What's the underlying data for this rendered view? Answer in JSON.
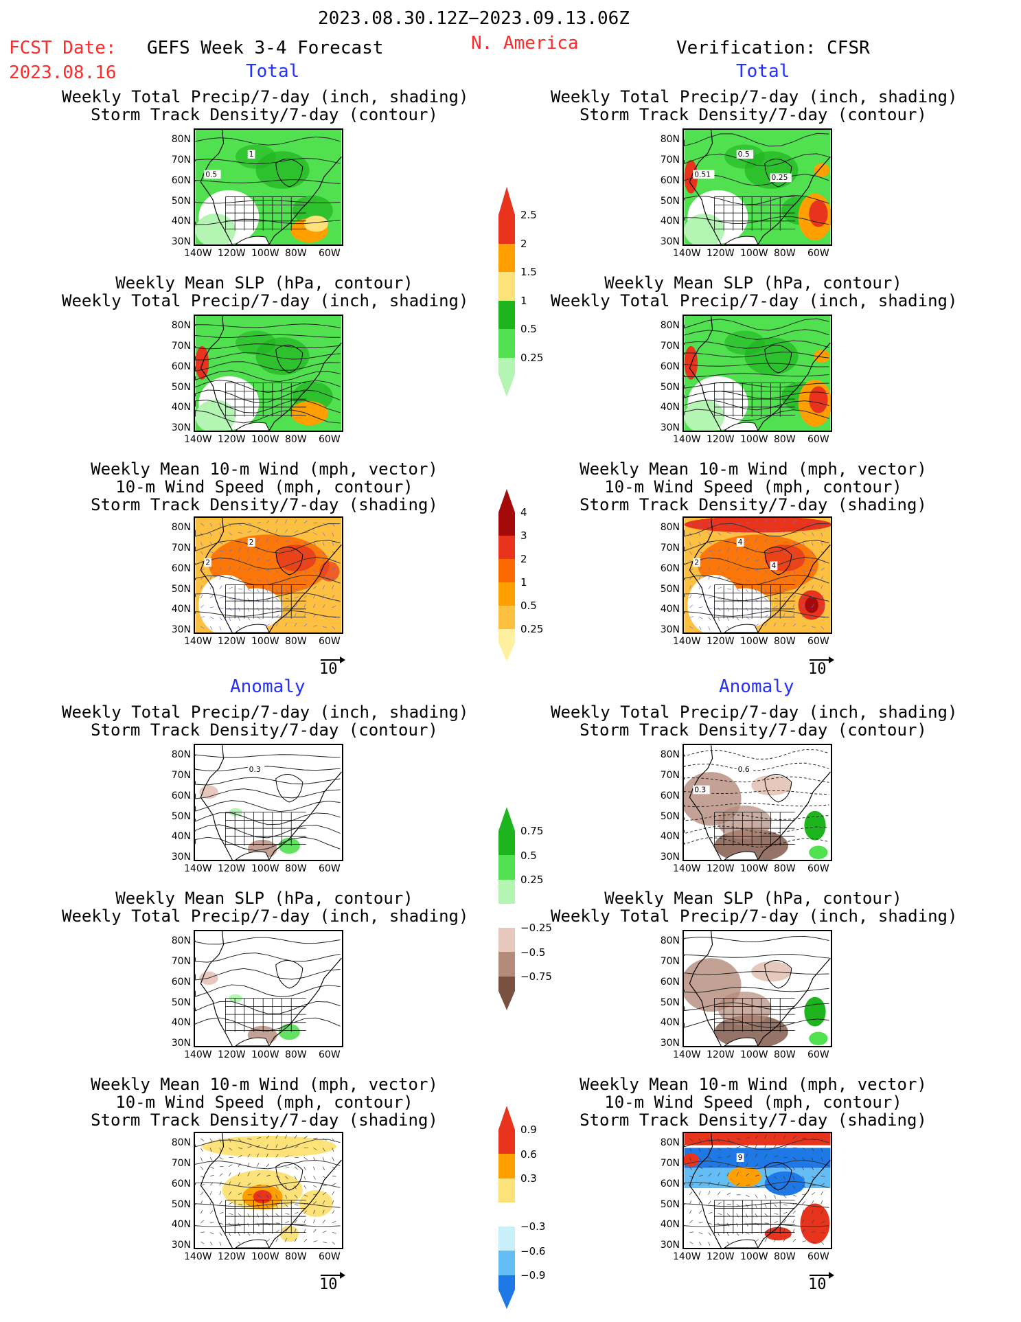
{
  "header": {
    "date_range": "2023.08.30.12Z−2023.09.13.06Z",
    "fcst_label": "FCST Date:",
    "fcst_date": "2023.08.16",
    "model": "GEFS Week 3-4 Forecast",
    "region": "N. America",
    "verification": "Verification: CFSR"
  },
  "sections": {
    "total": "Total",
    "anomaly": "Anomaly"
  },
  "titles": {
    "precip_storm": [
      "Weekly Total Precip/7-day (inch, shading)",
      "Storm Track Density/7-day (contour)"
    ],
    "slp_precip": [
      "Weekly Mean SLP (hPa, contour)",
      "Weekly Total Precip/7-day (inch, shading)"
    ],
    "wind_storm": [
      "Weekly Mean 10-m Wind (mph, vector)",
      "10-m Wind Speed (mph, contour)",
      "Storm Track Density/7-day (shading)"
    ]
  },
  "axes": {
    "lat": [
      "80N",
      "70N",
      "60N",
      "50N",
      "40N",
      "30N"
    ],
    "lon": [
      "140W",
      "120W",
      "100W",
      "80W",
      "60W"
    ]
  },
  "vector_ref": "10",
  "panel_labels": {
    "fc_total_1": [
      "1",
      "0.5"
    ],
    "ob_total_1": [
      "0.5",
      "0.51",
      "0.25"
    ],
    "fc_total_3": [
      "2",
      "2"
    ],
    "ob_total_3": [
      "4",
      "2",
      "4"
    ],
    "fc_anom_1": [
      "0.3"
    ],
    "ob_anom_1": [
      "0.6",
      "0.3"
    ],
    "ob_anom_3": [
      "9"
    ]
  },
  "colorbars": {
    "precip_total": {
      "labels": [
        "2.5",
        "2",
        "1.5",
        "1",
        "0.5",
        "0.25"
      ],
      "colors": [
        "#e8341c",
        "#ffa000",
        "#fde27a",
        "#1eb41e",
        "#50e050",
        "#b4f5b4"
      ]
    },
    "storm_total": {
      "labels": [
        "4",
        "3",
        "2",
        "1",
        "0.5",
        "0.25"
      ],
      "colors": [
        "#a50a0a",
        "#e8341c",
        "#fa6a00",
        "#ffa000",
        "#fdc040",
        "#fff0a0"
      ]
    },
    "precip_anom": {
      "labels": [
        "0.75",
        "0.5",
        "0.25",
        "−0.25",
        "−0.5",
        "−0.75"
      ],
      "colors": [
        "#1eb41e",
        "#50e050",
        "#b4f5b4",
        "#ffffff",
        "#e6c8bc",
        "#b48a7a",
        "#7a5040"
      ]
    },
    "storm_anom": {
      "labels": [
        "0.9",
        "0.6",
        "0.3",
        "−0.3",
        "−0.6",
        "−0.9"
      ],
      "colors": [
        "#e8341c",
        "#ffa000",
        "#fde27a",
        "#ffffff",
        "#c8f0fa",
        "#64bef5",
        "#1e78e6"
      ]
    }
  }
}
